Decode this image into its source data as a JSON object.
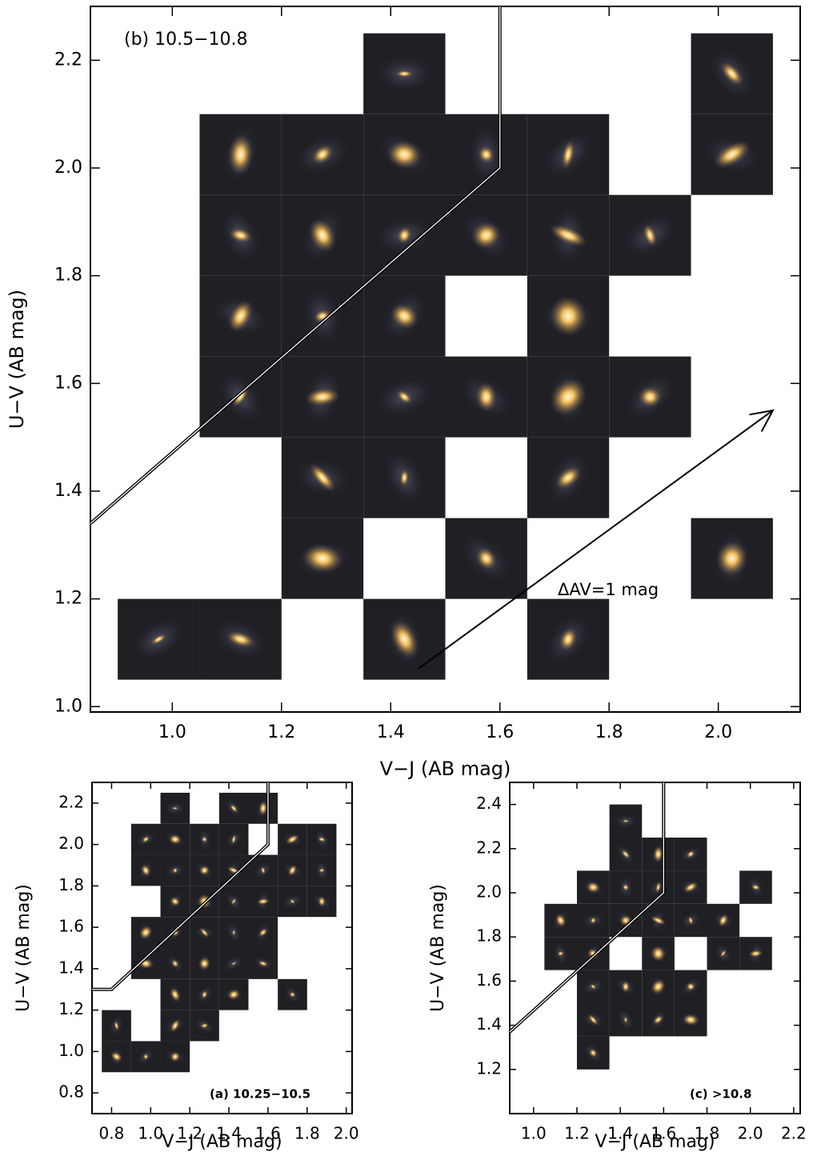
{
  "chart_data": [
    {
      "type": "tiles",
      "annotation": "(b) 10.5−10.8",
      "x_label": "V−J (AB mag)",
      "y_label": "U−V (AB mag)",
      "xlim": [
        0.85,
        2.15
      ],
      "ylim": [
        0.99,
        2.3
      ],
      "xticks": [
        {
          "value": 1,
          "label": "1.0"
        },
        {
          "value": 1.2,
          "label": "1.2"
        },
        {
          "value": 1.4,
          "label": "1.4"
        },
        {
          "value": 1.6,
          "label": "1.6"
        },
        {
          "value": 1.8,
          "label": "1.8"
        },
        {
          "value": 2,
          "label": "2.0"
        }
      ],
      "yticks": [
        {
          "value": 1,
          "label": "1.0"
        },
        {
          "value": 1.2,
          "label": "1.2"
        },
        {
          "value": 1.4,
          "label": "1.4"
        },
        {
          "value": 1.6,
          "label": "1.6"
        },
        {
          "value": 1.8,
          "label": "1.8"
        },
        {
          "value": 2,
          "label": "2.0"
        },
        {
          "value": 2.2,
          "label": "2.2"
        }
      ],
      "tiles": {
        "x": [
          1.425,
          2.025,
          1.125,
          1.275,
          1.425,
          1.575,
          1.725,
          2.025,
          1.125,
          1.275,
          1.425,
          1.575,
          1.725,
          1.875,
          1.125,
          1.275,
          1.425,
          1.725,
          1.125,
          1.275,
          1.425,
          1.575,
          1.725,
          1.875,
          1.275,
          1.425,
          1.725,
          1.275,
          1.575,
          2.025,
          0.975,
          1.125,
          1.425,
          1.725
        ],
        "y": [
          2.175,
          2.175,
          2.025,
          2.025,
          2.025,
          2.025,
          2.025,
          2.025,
          1.875,
          1.875,
          1.875,
          1.875,
          1.875,
          1.875,
          1.725,
          1.725,
          1.725,
          1.725,
          1.575,
          1.575,
          1.575,
          1.575,
          1.575,
          1.575,
          1.425,
          1.425,
          1.425,
          1.275,
          1.275,
          1.275,
          1.125,
          1.125,
          1.125,
          1.125
        ]
      },
      "selection_line": {
        "x": [
          0.85,
          1.6,
          1.6
        ],
        "y": [
          1.34,
          2.0,
          2.3
        ]
      },
      "arrow": {
        "x": [
          1.45,
          2.1
        ],
        "y": [
          1.07,
          1.55
        ],
        "label": "ΔAV=1 mag"
      }
    },
    {
      "type": "tiles",
      "annotation": "(a) 10.25−10.5",
      "x_label": "V−J (AB mag)",
      "y_label": "U−V (AB mag)",
      "xlim": [
        0.7,
        2.03
      ],
      "ylim": [
        0.7,
        2.3
      ],
      "xticks": [
        {
          "value": 0.8,
          "label": "0.8"
        },
        {
          "value": 1,
          "label": "1.0"
        },
        {
          "value": 1.2,
          "label": "1.2"
        },
        {
          "value": 1.4,
          "label": "1.4"
        },
        {
          "value": 1.6,
          "label": "1.6"
        },
        {
          "value": 1.8,
          "label": "1.8"
        },
        {
          "value": 2,
          "label": "2.0"
        }
      ],
      "yticks": [
        {
          "value": 0.8,
          "label": "0.8"
        },
        {
          "value": 1,
          "label": "1.0"
        },
        {
          "value": 1.2,
          "label": "1.2"
        },
        {
          "value": 1.4,
          "label": "1.4"
        },
        {
          "value": 1.6,
          "label": "1.6"
        },
        {
          "value": 1.8,
          "label": "1.8"
        },
        {
          "value": 2,
          "label": "2.0"
        },
        {
          "value": 2.2,
          "label": "2.2"
        }
      ],
      "tiles": {
        "x": [
          1.125,
          1.425,
          1.575,
          0.975,
          1.125,
          1.275,
          1.425,
          1.725,
          1.875,
          0.975,
          1.125,
          1.275,
          1.425,
          1.575,
          1.725,
          1.875,
          1.125,
          1.275,
          1.425,
          1.575,
          1.725,
          1.875,
          0.975,
          1.125,
          1.275,
          1.425,
          1.575,
          0.975,
          1.125,
          1.275,
          1.425,
          1.575,
          1.125,
          1.275,
          1.425,
          1.725,
          0.825,
          1.125,
          1.275,
          0.825,
          0.975,
          1.125
        ],
        "y": [
          2.175,
          2.175,
          2.175,
          2.025,
          2.025,
          2.025,
          2.025,
          2.025,
          2.025,
          1.875,
          1.875,
          1.875,
          1.875,
          1.875,
          1.875,
          1.875,
          1.725,
          1.725,
          1.725,
          1.725,
          1.725,
          1.725,
          1.575,
          1.575,
          1.575,
          1.575,
          1.575,
          1.425,
          1.425,
          1.425,
          1.425,
          1.425,
          1.275,
          1.275,
          1.275,
          1.275,
          1.125,
          1.125,
          1.125,
          0.975,
          0.975,
          0.975
        ]
      },
      "selection_line": {
        "x": [
          0.7,
          0.8,
          1.6,
          1.6
        ],
        "y": [
          1.3,
          1.3,
          2.0,
          2.3
        ]
      }
    },
    {
      "type": "tiles",
      "annotation": "(c) >10.8",
      "x_label": "V−J (AB mag)",
      "y_label": "U−V (AB mag)",
      "xlim": [
        0.89,
        2.23
      ],
      "ylim": [
        1.0,
        2.5
      ],
      "xticks": [
        {
          "value": 1,
          "label": "1.0"
        },
        {
          "value": 1.2,
          "label": "1.2"
        },
        {
          "value": 1.4,
          "label": "1.4"
        },
        {
          "value": 1.6,
          "label": "1.6"
        },
        {
          "value": 1.8,
          "label": "1.8"
        },
        {
          "value": 2,
          "label": "2.0"
        },
        {
          "value": 2.2,
          "label": "2.2"
        }
      ],
      "yticks": [
        {
          "value": 1.2,
          "label": "1.2"
        },
        {
          "value": 1.4,
          "label": "1.4"
        },
        {
          "value": 1.6,
          "label": "1.6"
        },
        {
          "value": 1.8,
          "label": "1.8"
        },
        {
          "value": 2,
          "label": "2.0"
        },
        {
          "value": 2.2,
          "label": "2.2"
        },
        {
          "value": 2.4,
          "label": "2.4"
        }
      ],
      "tiles": {
        "x": [
          1.425,
          1.425,
          1.575,
          1.725,
          1.275,
          1.425,
          1.575,
          1.725,
          2.025,
          1.125,
          1.275,
          1.425,
          1.575,
          1.725,
          1.875,
          1.125,
          1.275,
          1.575,
          1.875,
          2.025,
          1.275,
          1.425,
          1.575,
          1.725,
          1.275,
          1.425,
          1.575,
          1.725,
          1.275
        ],
        "y": [
          2.325,
          2.175,
          2.175,
          2.175,
          2.025,
          2.025,
          2.025,
          2.025,
          2.025,
          1.875,
          1.875,
          1.875,
          1.875,
          1.875,
          1.875,
          1.725,
          1.725,
          1.725,
          1.725,
          1.725,
          1.575,
          1.575,
          1.575,
          1.575,
          1.425,
          1.425,
          1.425,
          1.425,
          1.275
        ]
      },
      "selection_line": {
        "x": [
          0.89,
          1.6,
          1.6
        ],
        "y": [
          1.37,
          2.0,
          2.5
        ]
      }
    }
  ]
}
